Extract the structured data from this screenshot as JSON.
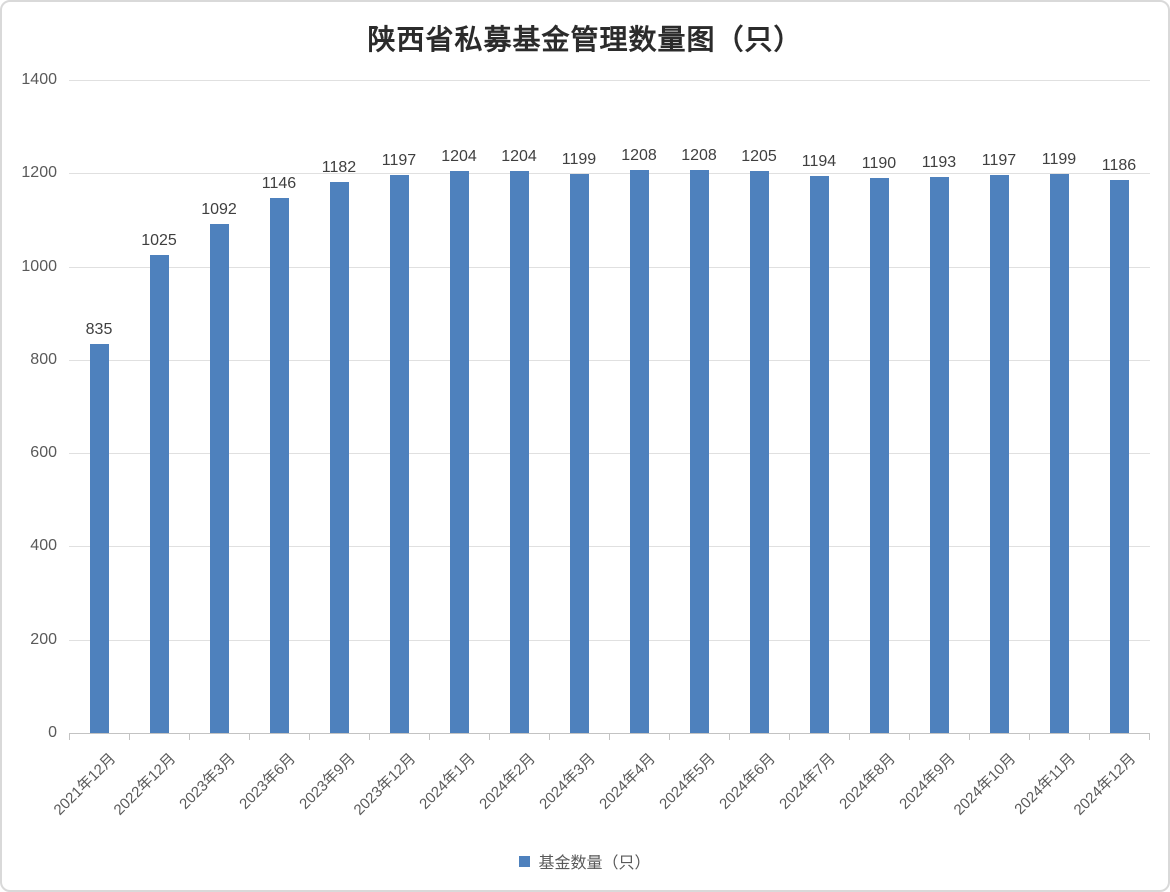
{
  "chart_data": {
    "type": "bar",
    "title": "陕西省私募基金管理数量图（只）",
    "categories": [
      "2021年12月",
      "2022年12月",
      "2023年3月",
      "2023年6月",
      "2023年9月",
      "2023年12月",
      "2024年1月",
      "2024年2月",
      "2024年3月",
      "2024年4月",
      "2024年5月",
      "2024年6月",
      "2024年7月",
      "2024年8月",
      "2024年9月",
      "2024年10月",
      "2024年11月",
      "2024年12月"
    ],
    "values": [
      835,
      1025,
      1092,
      1146,
      1182,
      1197,
      1204,
      1204,
      1199,
      1208,
      1208,
      1205,
      1194,
      1190,
      1193,
      1197,
      1199,
      1186
    ],
    "series_name": "基金数量（只）",
    "xlabel": "",
    "ylabel": "",
    "ylim": [
      0,
      1400
    ],
    "yticks": [
      0,
      200,
      400,
      600,
      800,
      1000,
      1200,
      1400
    ],
    "grid": true,
    "data_labels": true,
    "legend_position": "bottom"
  },
  "legend": {
    "label": "基金数量（只）"
  },
  "colors": {
    "bar": "#4e81bd",
    "grid": "#e0e0e0",
    "axis": "#c3c3c3",
    "tick_label": "#595959",
    "data_label": "#3f3f3f",
    "title": "#2b2b2b",
    "border": "#d9d9d9"
  }
}
